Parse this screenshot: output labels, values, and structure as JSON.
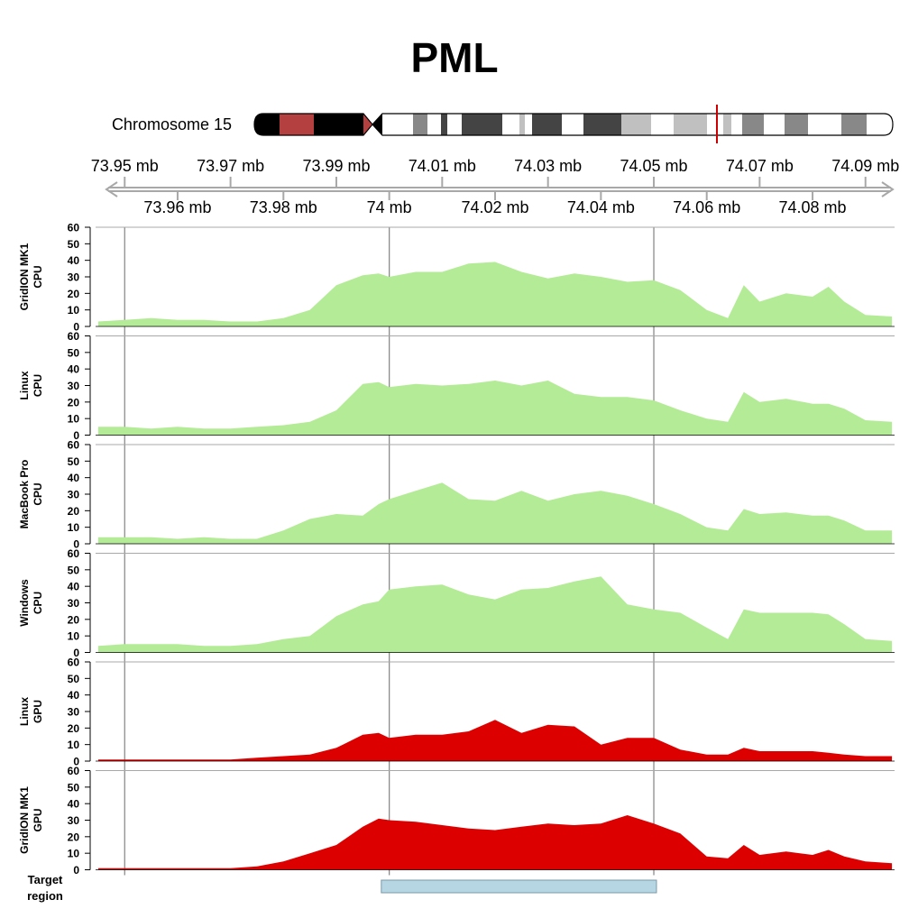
{
  "title": "PML",
  "ideogram": {
    "chromosome_label": "Chromosome 15",
    "highlight_color": "#cc0000"
  },
  "genome_axis": {
    "upper_ticks": [
      "73.95 mb",
      "73.97 mb",
      "73.99 mb",
      "74.01 mb",
      "74.03 mb",
      "74.05 mb",
      "74.07 mb",
      "74.09 mb"
    ],
    "lower_ticks": [
      "73.96 mb",
      "73.98 mb",
      "74 mb",
      "74.02 mb",
      "74.04 mb",
      "74.06 mb",
      "74.08 mb"
    ]
  },
  "target_region": {
    "label_line1": "Target",
    "label_line2": "region",
    "start_mb": 73.9985,
    "end_mb": 74.0505,
    "color": "#b7d6e3"
  },
  "colors": {
    "cpu_fill": "#b3eb96",
    "gpu_fill": "#dd0000",
    "grid": "#8c8c8c"
  },
  "chart_data": {
    "type": "area",
    "x_unit": "mb",
    "x_range": [
      73.9445,
      74.0955
    ],
    "ylim": [
      0,
      60
    ],
    "yticks": [
      0,
      10,
      20,
      30,
      40,
      50,
      60
    ],
    "x_gridlines": [
      73.95,
      74.0,
      74.05
    ],
    "x": [
      73.945,
      73.95,
      73.955,
      73.96,
      73.965,
      73.97,
      73.975,
      73.98,
      73.985,
      73.99,
      73.995,
      73.998,
      74.0,
      74.005,
      74.01,
      74.015,
      74.02,
      74.025,
      74.03,
      74.035,
      74.04,
      74.045,
      74.05,
      74.055,
      74.06,
      74.064,
      74.067,
      74.07,
      74.075,
      74.08,
      74.083,
      74.086,
      74.09,
      74.095
    ],
    "series": [
      {
        "name": "GridION MK1 CPU",
        "label_line1": "GridION MK1",
        "label_line2": "CPU",
        "kind": "cpu",
        "values": [
          3,
          4,
          5,
          4,
          4,
          3,
          3,
          5,
          10,
          25,
          31,
          32,
          30,
          33,
          33,
          38,
          39,
          33,
          29,
          32,
          30,
          27,
          28,
          22,
          10,
          5,
          25,
          15,
          20,
          18,
          24,
          15,
          7,
          6
        ]
      },
      {
        "name": "Linux CPU",
        "label_line1": "Linux",
        "label_line2": "CPU",
        "kind": "cpu",
        "values": [
          5,
          5,
          4,
          5,
          4,
          4,
          5,
          6,
          8,
          15,
          31,
          32,
          29,
          31,
          30,
          31,
          33,
          30,
          33,
          25,
          23,
          23,
          21,
          15,
          10,
          8,
          26,
          20,
          22,
          19,
          19,
          16,
          9,
          8
        ]
      },
      {
        "name": "MacBook Pro CPU",
        "label_line1": "MacBook Pro",
        "label_line2": "CPU",
        "kind": "cpu",
        "values": [
          4,
          4,
          4,
          3,
          4,
          3,
          3,
          8,
          15,
          18,
          17,
          24,
          27,
          32,
          37,
          27,
          26,
          32,
          26,
          30,
          32,
          29,
          24,
          18,
          10,
          8,
          21,
          18,
          19,
          17,
          17,
          14,
          8,
          8
        ]
      },
      {
        "name": "Windows CPU",
        "label_line1": "Windows",
        "label_line2": "CPU",
        "kind": "cpu",
        "values": [
          4,
          5,
          5,
          5,
          4,
          4,
          5,
          8,
          10,
          22,
          29,
          31,
          38,
          40,
          41,
          35,
          32,
          38,
          39,
          43,
          46,
          29,
          26,
          24,
          15,
          8,
          26,
          24,
          24,
          24,
          23,
          17,
          8,
          7
        ]
      },
      {
        "name": "Linux GPU",
        "label_line1": "Linux",
        "label_line2": "GPU",
        "kind": "gpu",
        "values": [
          1,
          1,
          1,
          1,
          1,
          1,
          2,
          3,
          4,
          8,
          16,
          17,
          14,
          16,
          16,
          18,
          25,
          17,
          22,
          21,
          10,
          14,
          14,
          7,
          4,
          4,
          8,
          6,
          6,
          6,
          5,
          4,
          3,
          3
        ]
      },
      {
        "name": "GridION MK1 GPU",
        "label_line1": "GridION MK1",
        "label_line2": "GPU",
        "kind": "gpu",
        "values": [
          1,
          1,
          1,
          1,
          1,
          1,
          2,
          5,
          10,
          15,
          26,
          31,
          30,
          29,
          27,
          25,
          24,
          26,
          28,
          27,
          28,
          33,
          28,
          22,
          8,
          7,
          15,
          9,
          11,
          9,
          12,
          8,
          5,
          4
        ]
      }
    ]
  }
}
